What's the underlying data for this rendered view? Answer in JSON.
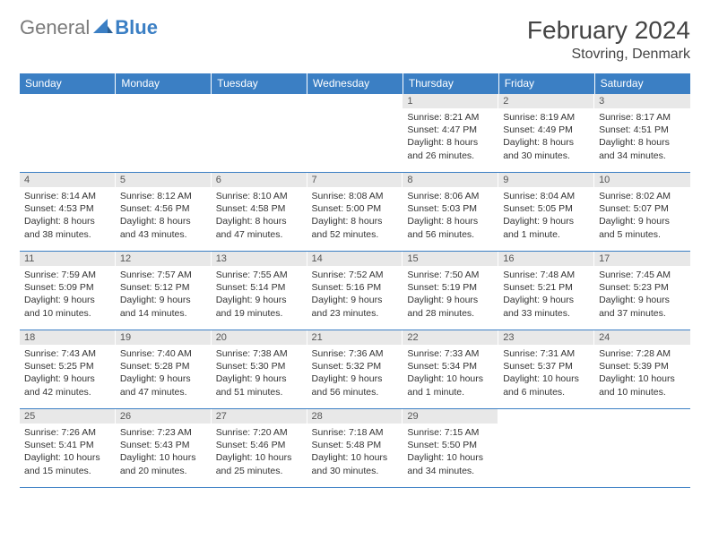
{
  "logo": {
    "general": "General",
    "blue": "Blue"
  },
  "title": "February 2024",
  "location": "Stovring, Denmark",
  "colors": {
    "header_bg": "#3b7fc4",
    "header_text": "#ffffff",
    "daynum_bg": "#e8e8e8",
    "border": "#3b7fc4",
    "logo_gray": "#7a7a7a",
    "logo_blue": "#3b7fc4"
  },
  "daysOfWeek": [
    "Sunday",
    "Monday",
    "Tuesday",
    "Wednesday",
    "Thursday",
    "Friday",
    "Saturday"
  ],
  "weeks": [
    [
      {
        "n": "",
        "sr": "",
        "ss": "",
        "dl": ""
      },
      {
        "n": "",
        "sr": "",
        "ss": "",
        "dl": ""
      },
      {
        "n": "",
        "sr": "",
        "ss": "",
        "dl": ""
      },
      {
        "n": "",
        "sr": "",
        "ss": "",
        "dl": ""
      },
      {
        "n": "1",
        "sr": "Sunrise: 8:21 AM",
        "ss": "Sunset: 4:47 PM",
        "dl": "Daylight: 8 hours and 26 minutes."
      },
      {
        "n": "2",
        "sr": "Sunrise: 8:19 AM",
        "ss": "Sunset: 4:49 PM",
        "dl": "Daylight: 8 hours and 30 minutes."
      },
      {
        "n": "3",
        "sr": "Sunrise: 8:17 AM",
        "ss": "Sunset: 4:51 PM",
        "dl": "Daylight: 8 hours and 34 minutes."
      }
    ],
    [
      {
        "n": "4",
        "sr": "Sunrise: 8:14 AM",
        "ss": "Sunset: 4:53 PM",
        "dl": "Daylight: 8 hours and 38 minutes."
      },
      {
        "n": "5",
        "sr": "Sunrise: 8:12 AM",
        "ss": "Sunset: 4:56 PM",
        "dl": "Daylight: 8 hours and 43 minutes."
      },
      {
        "n": "6",
        "sr": "Sunrise: 8:10 AM",
        "ss": "Sunset: 4:58 PM",
        "dl": "Daylight: 8 hours and 47 minutes."
      },
      {
        "n": "7",
        "sr": "Sunrise: 8:08 AM",
        "ss": "Sunset: 5:00 PM",
        "dl": "Daylight: 8 hours and 52 minutes."
      },
      {
        "n": "8",
        "sr": "Sunrise: 8:06 AM",
        "ss": "Sunset: 5:03 PM",
        "dl": "Daylight: 8 hours and 56 minutes."
      },
      {
        "n": "9",
        "sr": "Sunrise: 8:04 AM",
        "ss": "Sunset: 5:05 PM",
        "dl": "Daylight: 9 hours and 1 minute."
      },
      {
        "n": "10",
        "sr": "Sunrise: 8:02 AM",
        "ss": "Sunset: 5:07 PM",
        "dl": "Daylight: 9 hours and 5 minutes."
      }
    ],
    [
      {
        "n": "11",
        "sr": "Sunrise: 7:59 AM",
        "ss": "Sunset: 5:09 PM",
        "dl": "Daylight: 9 hours and 10 minutes."
      },
      {
        "n": "12",
        "sr": "Sunrise: 7:57 AM",
        "ss": "Sunset: 5:12 PM",
        "dl": "Daylight: 9 hours and 14 minutes."
      },
      {
        "n": "13",
        "sr": "Sunrise: 7:55 AM",
        "ss": "Sunset: 5:14 PM",
        "dl": "Daylight: 9 hours and 19 minutes."
      },
      {
        "n": "14",
        "sr": "Sunrise: 7:52 AM",
        "ss": "Sunset: 5:16 PM",
        "dl": "Daylight: 9 hours and 23 minutes."
      },
      {
        "n": "15",
        "sr": "Sunrise: 7:50 AM",
        "ss": "Sunset: 5:19 PM",
        "dl": "Daylight: 9 hours and 28 minutes."
      },
      {
        "n": "16",
        "sr": "Sunrise: 7:48 AM",
        "ss": "Sunset: 5:21 PM",
        "dl": "Daylight: 9 hours and 33 minutes."
      },
      {
        "n": "17",
        "sr": "Sunrise: 7:45 AM",
        "ss": "Sunset: 5:23 PM",
        "dl": "Daylight: 9 hours and 37 minutes."
      }
    ],
    [
      {
        "n": "18",
        "sr": "Sunrise: 7:43 AM",
        "ss": "Sunset: 5:25 PM",
        "dl": "Daylight: 9 hours and 42 minutes."
      },
      {
        "n": "19",
        "sr": "Sunrise: 7:40 AM",
        "ss": "Sunset: 5:28 PM",
        "dl": "Daylight: 9 hours and 47 minutes."
      },
      {
        "n": "20",
        "sr": "Sunrise: 7:38 AM",
        "ss": "Sunset: 5:30 PM",
        "dl": "Daylight: 9 hours and 51 minutes."
      },
      {
        "n": "21",
        "sr": "Sunrise: 7:36 AM",
        "ss": "Sunset: 5:32 PM",
        "dl": "Daylight: 9 hours and 56 minutes."
      },
      {
        "n": "22",
        "sr": "Sunrise: 7:33 AM",
        "ss": "Sunset: 5:34 PM",
        "dl": "Daylight: 10 hours and 1 minute."
      },
      {
        "n": "23",
        "sr": "Sunrise: 7:31 AM",
        "ss": "Sunset: 5:37 PM",
        "dl": "Daylight: 10 hours and 6 minutes."
      },
      {
        "n": "24",
        "sr": "Sunrise: 7:28 AM",
        "ss": "Sunset: 5:39 PM",
        "dl": "Daylight: 10 hours and 10 minutes."
      }
    ],
    [
      {
        "n": "25",
        "sr": "Sunrise: 7:26 AM",
        "ss": "Sunset: 5:41 PM",
        "dl": "Daylight: 10 hours and 15 minutes."
      },
      {
        "n": "26",
        "sr": "Sunrise: 7:23 AM",
        "ss": "Sunset: 5:43 PM",
        "dl": "Daylight: 10 hours and 20 minutes."
      },
      {
        "n": "27",
        "sr": "Sunrise: 7:20 AM",
        "ss": "Sunset: 5:46 PM",
        "dl": "Daylight: 10 hours and 25 minutes."
      },
      {
        "n": "28",
        "sr": "Sunrise: 7:18 AM",
        "ss": "Sunset: 5:48 PM",
        "dl": "Daylight: 10 hours and 30 minutes."
      },
      {
        "n": "29",
        "sr": "Sunrise: 7:15 AM",
        "ss": "Sunset: 5:50 PM",
        "dl": "Daylight: 10 hours and 34 minutes."
      },
      {
        "n": "",
        "sr": "",
        "ss": "",
        "dl": ""
      },
      {
        "n": "",
        "sr": "",
        "ss": "",
        "dl": ""
      }
    ]
  ]
}
